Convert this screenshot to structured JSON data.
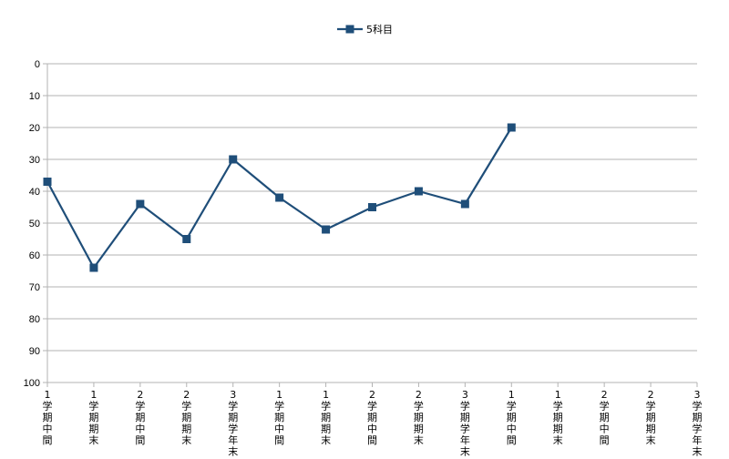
{
  "chart_data": {
    "type": "line",
    "y_axis": {
      "min": 0,
      "max": 100,
      "step": 10,
      "reversed": true
    },
    "grid": true,
    "legend": {
      "position": "top-center",
      "marker": "square"
    },
    "categories": [
      "1学期中間",
      "1学期期末",
      "2学期中間",
      "2学期期末",
      "3学期学年末",
      "1学期中間",
      "1学期期末",
      "2学期中間",
      "2学期期末",
      "3学期学年末",
      "1学期中間",
      "1学期期末",
      "2学期中間",
      "2学期期末",
      "3学期学年末"
    ],
    "series": [
      {
        "name": "5科目",
        "color": "#1f4e79",
        "values": [
          37,
          64,
          44,
          55,
          30,
          42,
          52,
          45,
          40,
          44,
          20,
          null,
          null,
          null,
          null
        ]
      }
    ]
  }
}
